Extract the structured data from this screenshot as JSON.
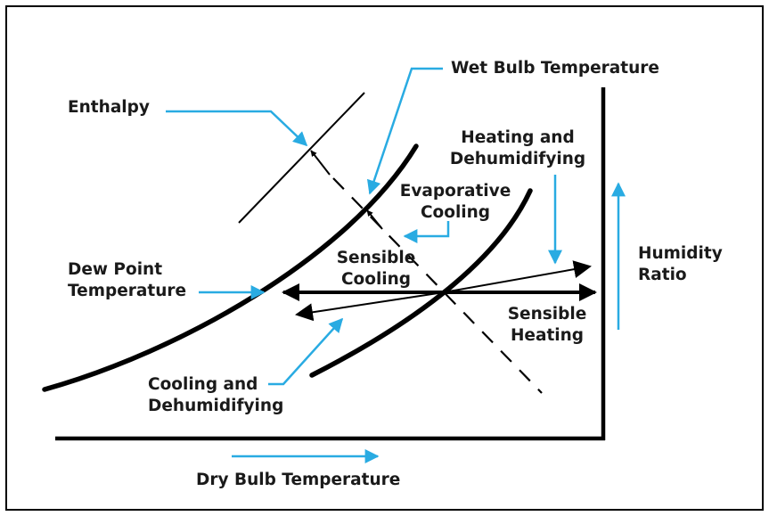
{
  "colors": {
    "ink": "#000000",
    "arrow_blue": "#29abe2"
  },
  "labels": {
    "wet_bulb": "Wet Bulb Temperature",
    "enthalpy": "Enthalpy",
    "heating_dehum": [
      "Heating and",
      "Dehumidifying"
    ],
    "evaporative": [
      "Evaporative",
      "Cooling"
    ],
    "humidity_ratio": [
      "Humidity",
      "Ratio"
    ],
    "dew_point": [
      "Dew Point",
      "Temperature"
    ],
    "sensible_cooling": [
      "Sensible",
      "Cooling"
    ],
    "sensible_heating": [
      "Sensible",
      "Heating"
    ],
    "cooling_dehum": [
      "Cooling and",
      "Dehumidifying"
    ],
    "dry_bulb": "Dry Bulb Temperature"
  }
}
